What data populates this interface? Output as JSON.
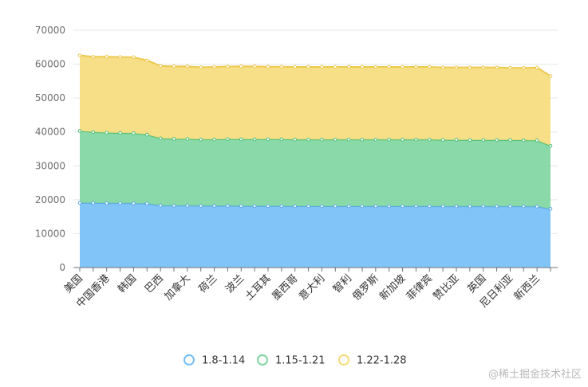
{
  "chart_data": {
    "type": "area",
    "stacked": true,
    "ylim": [
      0,
      70000
    ],
    "yticks": [
      0,
      10000,
      20000,
      30000,
      40000,
      50000,
      60000,
      70000
    ],
    "grid": true,
    "legend_position": "bottom-center",
    "tick_labels": [
      "美国",
      "中国香港",
      "韩国",
      "巴西",
      "加拿大",
      "荷兰",
      "波兰",
      "土耳其",
      "墨西哥",
      "意大利",
      "智利",
      "俄罗斯",
      "新加坡",
      "菲律宾",
      "赞比亚",
      "英国",
      "尼日利亚",
      "新西兰"
    ],
    "n_points": 36,
    "series": [
      {
        "name": "1.8-1.14",
        "color": "#73bff7",
        "values": [
          19100,
          19050,
          19000,
          19000,
          18950,
          18900,
          18300,
          18250,
          18250,
          18200,
          18200,
          18200,
          18150,
          18150,
          18150,
          18150,
          18100,
          18100,
          18100,
          18100,
          18100,
          18100,
          18100,
          18100,
          18100,
          18100,
          18100,
          18050,
          18050,
          18050,
          18050,
          18050,
          18050,
          18050,
          18000,
          17300
        ]
      },
      {
        "name": "1.15-1.21",
        "color": "#7dd6a0",
        "values": [
          21200,
          20900,
          20800,
          20700,
          20700,
          20300,
          19800,
          19700,
          19700,
          19600,
          19600,
          19700,
          19700,
          19700,
          19700,
          19700,
          19650,
          19650,
          19650,
          19650,
          19650,
          19650,
          19650,
          19650,
          19650,
          19650,
          19650,
          19600,
          19600,
          19550,
          19550,
          19550,
          19550,
          19500,
          19500,
          18600
        ]
      },
      {
        "name": "1.22-1.28",
        "color": "#f5dc7a",
        "values": [
          22300,
          22200,
          22400,
          22400,
          22400,
          21900,
          21400,
          21400,
          21400,
          21300,
          21400,
          21400,
          21500,
          21500,
          21400,
          21400,
          21450,
          21450,
          21450,
          21450,
          21450,
          21450,
          21450,
          21450,
          21450,
          21450,
          21450,
          21400,
          21400,
          21450,
          21450,
          21450,
          21300,
          21350,
          21500,
          20600
        ]
      }
    ]
  },
  "watermark": "@稀土掘金技术社区"
}
